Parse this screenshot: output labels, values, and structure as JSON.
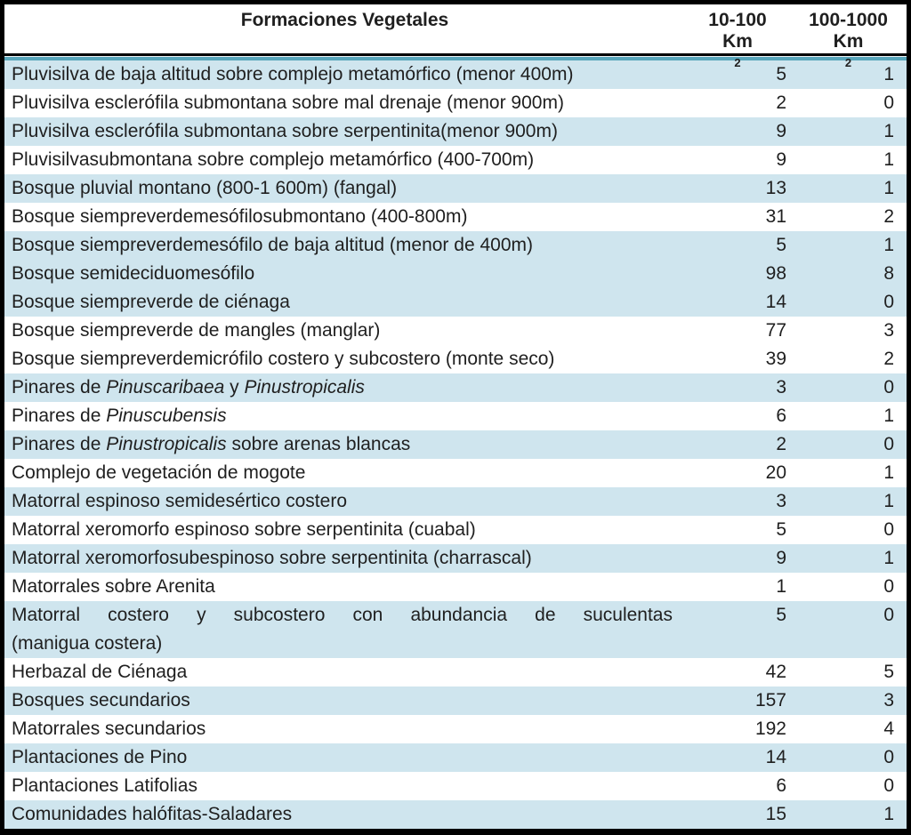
{
  "table": {
    "header": {
      "col1": "Formaciones Vegetales",
      "col2": {
        "range": "10-100",
        "unit": "Km",
        "sup": "2"
      },
      "col3": {
        "range": "100-1000",
        "unit": "Km",
        "sup": "2"
      }
    },
    "colors": {
      "row_blue": "#cfe5ee",
      "row_white": "#ffffff",
      "accent_teal": "#58a6bb",
      "border_black": "#000000",
      "text": "#1f1f1f"
    },
    "rows": [
      {
        "name": "Pluvisilva de baja altitud sobre complejo metamórfico (menor 400m)",
        "v1": "5",
        "v2": "1",
        "bg": "blue"
      },
      {
        "name": "Pluvisilva esclerófila submontana sobre mal drenaje (menor 900m)",
        "v1": "2",
        "v2": "0",
        "bg": "white"
      },
      {
        "name": "Pluvisilva esclerófila submontana sobre serpentinita(menor 900m)",
        "v1": "9",
        "v2": "1",
        "bg": "blue"
      },
      {
        "name": "Pluvisilvasubmontana sobre complejo metamórfico (400-700m)",
        "v1": "9",
        "v2": "1",
        "bg": "white"
      },
      {
        "name": "Bosque pluvial montano (800-1 600m) (fangal)",
        "v1": "13",
        "v2": "1",
        "bg": "blue"
      },
      {
        "name": "Bosque siempreverdemesófilosubmontano (400-800m)",
        "v1": "31",
        "v2": "2",
        "bg": "white"
      },
      {
        "name": "Bosque siempreverdemesófilo de baja altitud (menor de 400m)",
        "v1": "5",
        "v2": "1",
        "bg": "blue"
      },
      {
        "name": "Bosque semideciduomesófilo",
        "v1": "98",
        "v2": "8",
        "bg": "blue"
      },
      {
        "name": "Bosque siempreverde de ciénaga",
        "v1": "14",
        "v2": "0",
        "bg": "blue"
      },
      {
        "name": "Bosque siempreverde de mangles (manglar)",
        "v1": "77",
        "v2": "3",
        "bg": "white"
      },
      {
        "name": "Bosque siempreverdemicrófilo costero y subcostero (monte seco)",
        "v1": "39",
        "v2": "2",
        "bg": "white"
      },
      {
        "name": "Pinares de *Pinuscaribaea* y *Pinustropicalis*",
        "v1": "3",
        "v2": "0",
        "bg": "blue"
      },
      {
        "name": "Pinares de *Pinuscubensis*",
        "v1": "6",
        "v2": "1",
        "bg": "white"
      },
      {
        "name": "Pinares de *Pinustropicalis* sobre arenas blancas",
        "v1": "2",
        "v2": "0",
        "bg": "blue"
      },
      {
        "name": "Complejo de vegetación de mogote",
        "v1": "20",
        "v2": "1",
        "bg": "white"
      },
      {
        "name": "Matorral espinoso semidesértico costero",
        "v1": "3",
        "v2": "1",
        "bg": "blue"
      },
      {
        "name": "Matorral xeromorfo espinoso sobre serpentinita (cuabal)",
        "v1": "5",
        "v2": "0",
        "bg": "white"
      },
      {
        "name": "Matorral xeromorfosubespinoso sobre serpentinita (charrascal)",
        "v1": "9",
        "v2": "1",
        "bg": "blue"
      },
      {
        "name": "Matorrales sobre Arenita",
        "v1": "1",
        "v2": "0",
        "bg": "white"
      },
      {
        "name": "Matorral costero y subcostero con abundancia de suculentas",
        "name2": "(manigua costera)",
        "v1": "5",
        "v2": "0",
        "bg": "blue"
      },
      {
        "name": "Herbazal de Ciénaga",
        "v1": "42",
        "v2": "5",
        "bg": "white"
      },
      {
        "name": "Bosques secundarios",
        "v1": "157",
        "v2": "3",
        "bg": "blue"
      },
      {
        "name": "Matorrales secundarios",
        "v1": "192",
        "v2": "4",
        "bg": "white"
      },
      {
        "name": "Plantaciones de Pino",
        "v1": "14",
        "v2": "0",
        "bg": "blue"
      },
      {
        "name": "Plantaciones Latifolias",
        "v1": "6",
        "v2": "0",
        "bg": "white"
      },
      {
        "name": "Comunidades halófitas-Saladares",
        "v1": "15",
        "v2": "1",
        "bg": "blue"
      }
    ]
  }
}
